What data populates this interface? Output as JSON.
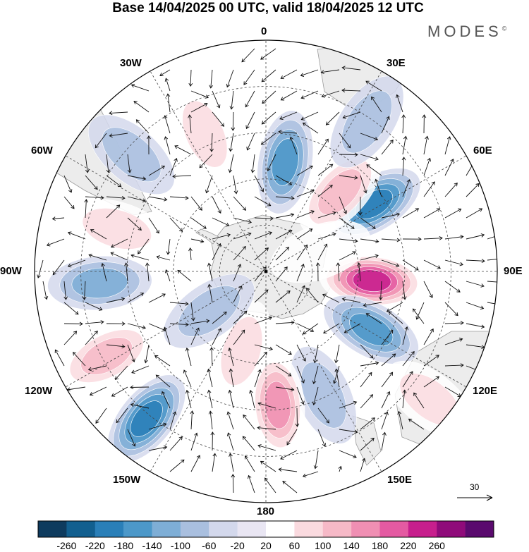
{
  "title": "Base 14/04/2025 00 UTC, valid 18/04/2025 12 UTC",
  "brand": {
    "name": "MODES",
    "mark": "©"
  },
  "longitude_labels": [
    "0",
    "30E",
    "60E",
    "90E",
    "120E",
    "150E",
    "180",
    "150W",
    "120W",
    "90W",
    "60W",
    "30W"
  ],
  "reference_vector": {
    "label": "30",
    "icon": "arrow-right-icon"
  },
  "colorbar": {
    "ticks": [
      "-260",
      "-220",
      "-180",
      "-140",
      "-100",
      "-60",
      "-20",
      "20",
      "60",
      "100",
      "140",
      "180",
      "220",
      "260"
    ],
    "colors": [
      "#0e3b5e",
      "#125f8f",
      "#2a7fb8",
      "#4c98c9",
      "#7eaed6",
      "#a9bfdf",
      "#d3d8ec",
      "#e9e6f3",
      "#ffffff",
      "#fadadf",
      "#f6b9c7",
      "#f08fb3",
      "#e45aa2",
      "#c71f8d",
      "#8f0b7a",
      "#5a0a6e"
    ]
  },
  "map": {
    "projection": "south polar stereographic",
    "land_color": "#ececec",
    "anomalies": [
      {
        "id": "A1",
        "lon": 95,
        "rdist": 0.46,
        "value": 230
      },
      {
        "id": "A2",
        "lon": 58,
        "rdist": 0.55,
        "value": -190
      },
      {
        "id": "A3",
        "lon": 10,
        "rdist": 0.48,
        "value": -150
      },
      {
        "id": "A4",
        "lon": 43,
        "rdist": 0.47,
        "value": 110
      },
      {
        "id": "A5",
        "lon": 34,
        "rdist": 0.78,
        "value": -80
      },
      {
        "id": "A6",
        "lon": 119,
        "rdist": 0.52,
        "value": -140
      },
      {
        "id": "A7",
        "lon": 155,
        "rdist": 0.59,
        "value": -90
      },
      {
        "id": "A8",
        "lon": 175,
        "rdist": 0.58,
        "value": 150
      },
      {
        "id": "A9",
        "lon": -163,
        "rdist": 0.36,
        "value": 80
      },
      {
        "id": "A10",
        "lon": -141,
        "rdist": 0.82,
        "value": -210
      },
      {
        "id": "A11",
        "lon": -118,
        "rdist": 0.78,
        "value": 130
      },
      {
        "id": "A12",
        "lon": -94,
        "rdist": 0.72,
        "value": -110
      },
      {
        "id": "A13",
        "lon": -74,
        "rdist": 0.67,
        "value": 70
      },
      {
        "id": "A14",
        "lon": -49,
        "rdist": 0.77,
        "value": -70
      },
      {
        "id": "A15",
        "lon": -24,
        "rdist": 0.65,
        "value": 70
      },
      {
        "id": "A16",
        "lon": 128,
        "rdist": 0.9,
        "value": 60
      },
      {
        "id": "A17",
        "lon": -125,
        "rdist": 0.3,
        "value": -60
      },
      {
        "id": "A18",
        "lon": 70,
        "rdist": 0.25,
        "value": 40
      }
    ]
  }
}
